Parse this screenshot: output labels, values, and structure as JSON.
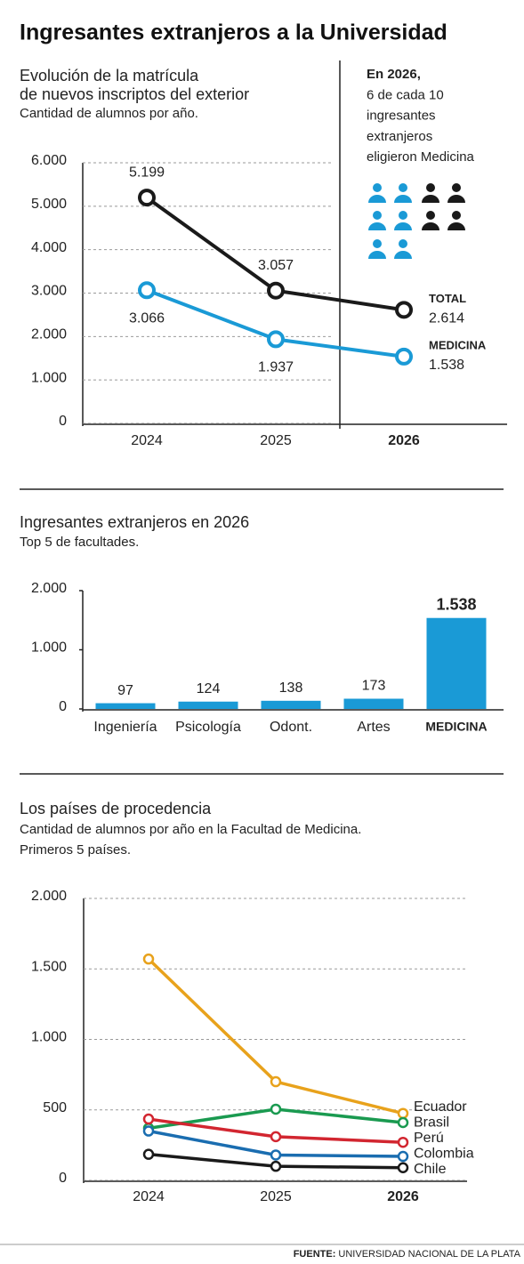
{
  "title": "Ingresantes extranjeros a la Universidad",
  "source_label": "FUENTE:",
  "source": "UNIVERSIDAD NACIONAL DE LA PLATA",
  "chart_data": [
    {
      "type": "line",
      "title_lines": [
        "Evolución de la matrícula",
        "de nuevos inscriptos del exterior"
      ],
      "subtitle": "Cantidad de alumnos por año.",
      "categories": [
        "2024",
        "2025",
        "2026"
      ],
      "series": [
        {
          "name": "TOTAL",
          "color": "#1a1a1a",
          "values": [
            5199,
            3057,
            2614
          ],
          "value_labels": [
            "5.199",
            "3.057",
            "2.614"
          ]
        },
        {
          "name": "MEDICINA",
          "color": "#1a9ad6",
          "values": [
            3066,
            1937,
            1538
          ],
          "value_labels": [
            "3.066",
            "1.937",
            "1.538"
          ]
        }
      ],
      "ylim": [
        0,
        6000
      ],
      "yticks": [
        0,
        {
          "value": 1000,
          "label": "1.000"
        },
        {
          "value": 2000,
          "label": "2.000"
        },
        {
          "value": 3000,
          "label": "3.000"
        },
        {
          "value": 4000,
          "label": "4.000"
        },
        {
          "value": 5000,
          "label": "5.000"
        },
        {
          "value": 6000,
          "label": "6.000"
        }
      ],
      "grid": true,
      "annotation_lines": [
        "En 2026,",
        "6 de cada 10",
        "ingresantes",
        "extranjeros",
        "eligieron Medicina"
      ]
    },
    {
      "type": "bar",
      "title_lines": [
        "Ingresantes extranjeros en 2026"
      ],
      "subtitle": "Top 5 de facultades.",
      "categories": [
        "Ingeniería",
        "Psicología",
        "Odont.",
        "Artes",
        "MEDICINA"
      ],
      "values": [
        97,
        124,
        138,
        173,
        1538
      ],
      "value_labels": [
        "97",
        "124",
        "138",
        "173",
        "1.538"
      ],
      "color": "#1a9ad6",
      "ylim": [
        0,
        2000
      ],
      "yticks": [
        0,
        {
          "value": 1000,
          "label": "1.000"
        },
        {
          "value": 2000,
          "label": "2.000"
        }
      ],
      "grid": false
    },
    {
      "type": "line",
      "title_lines": [
        "Los países de procedencia"
      ],
      "subtitle_lines": [
        "Cantidad de alumnos por año en la Facultad de Medicina.",
        "Primeros 5 países."
      ],
      "categories": [
        "2024",
        "2025",
        "2026"
      ],
      "series": [
        {
          "name": "Ecuador",
          "color": "#e8a21c",
          "values": [
            1570,
            700,
            475
          ]
        },
        {
          "name": "Brasil",
          "color": "#1a9a50",
          "values": [
            370,
            505,
            410
          ]
        },
        {
          "name": "Perú",
          "color": "#d22630",
          "values": [
            435,
            310,
            270
          ]
        },
        {
          "name": "Colombia",
          "color": "#1a6db0",
          "values": [
            350,
            180,
            170
          ]
        },
        {
          "name": "Chile",
          "color": "#1a1a1a",
          "values": [
            185,
            100,
            90
          ]
        }
      ],
      "ylim": [
        0,
        2000
      ],
      "yticks": [
        0,
        500,
        {
          "value": 1000,
          "label": "1.000"
        },
        {
          "value": 1500,
          "label": "1.500"
        },
        {
          "value": 2000,
          "label": "2.000"
        }
      ],
      "grid": true
    }
  ]
}
